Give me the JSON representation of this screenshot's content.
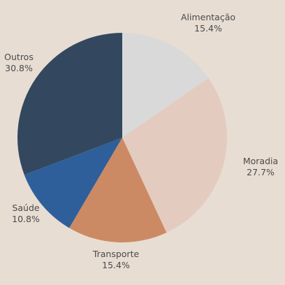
{
  "chart_data": {
    "type": "pie",
    "categories": [
      "Alimentação",
      "Moradia",
      "Transporte",
      "Saúde",
      "Outros"
    ],
    "values": [
      15.4,
      27.7,
      15.4,
      10.8,
      30.8
    ],
    "value_labels": [
      "15.4%",
      "27.7%",
      "15.4%",
      "10.8%",
      "30.8%"
    ],
    "colors": [
      "#d9d9d9",
      "#e3ccbf",
      "#cc8a64",
      "#2f5f9a",
      "#33485f"
    ],
    "start_angle_deg": 0,
    "direction": "clockwise",
    "title": ""
  }
}
